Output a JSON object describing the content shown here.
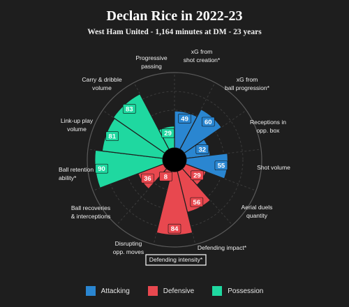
{
  "header": {
    "title": "Declan Rice in 2022-23",
    "subtitle": "West Ham United - 1,164 minutes at DM - 23 years"
  },
  "colors": {
    "background": "#1e1e1e",
    "attacking": "#2a86d1",
    "defensive": "#e8484f",
    "possession": "#1fd8a0",
    "grid": "#3c3c3c",
    "highlight_box": "#ffffff"
  },
  "chart_data": {
    "type": "polar-bar",
    "title": "Declan Rice in 2022-23",
    "subtitle": "West Ham United - 1,164 minutes at DM - 23 years",
    "rlim": [
      0,
      100
    ],
    "grid": true,
    "highlighted_metric": "Defending intensity*",
    "metrics": [
      {
        "label": "xG from shot creation*",
        "value": 49,
        "category": "Attacking"
      },
      {
        "label": "xG from ball progression*",
        "value": 60,
        "category": "Attacking"
      },
      {
        "label": "Receptions in opp. box",
        "value": 32,
        "category": "Attacking"
      },
      {
        "label": "Shot volume",
        "value": 55,
        "category": "Attacking"
      },
      {
        "label": "Aerial duels quantity",
        "value": 29,
        "category": "Defensive"
      },
      {
        "label": "Defending impact*",
        "value": 56,
        "category": "Defensive"
      },
      {
        "label": "Defending intensity*",
        "value": 84,
        "category": "Defensive"
      },
      {
        "label": "Disrupting opp. moves",
        "value": 8,
        "category": "Defensive"
      },
      {
        "label": "Ball recoveries & interceptions",
        "value": 36,
        "category": "Defensive"
      },
      {
        "label": "Ball retention ability*",
        "value": 90,
        "category": "Possession"
      },
      {
        "label": "Link-up play volume",
        "value": 81,
        "category": "Possession"
      },
      {
        "label": "Carry & dribble volume",
        "value": 83,
        "category": "Possession"
      },
      {
        "label": "Progressive passing",
        "value": 29,
        "category": "Possession"
      }
    ],
    "legend": {
      "placement": "bottom",
      "entries": [
        "Attacking",
        "Defensive",
        "Possession"
      ]
    }
  }
}
